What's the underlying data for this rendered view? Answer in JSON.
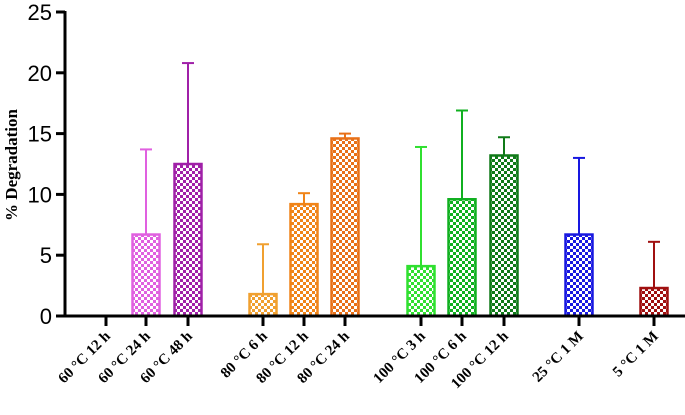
{
  "chart_data": {
    "type": "bar",
    "ylabel": "% Degradation",
    "ylim": [
      0,
      25
    ],
    "yticks": [
      0,
      5,
      10,
      15,
      20,
      25
    ],
    "grid": false,
    "bars": [
      {
        "label": "60 °C 12 h",
        "value": 0,
        "error": 0,
        "color": "#ff00ff"
      },
      {
        "label": "60 °C 24 h",
        "value": 6.7,
        "error": 7.0,
        "color": "#e060e0"
      },
      {
        "label": "60 °C 48 h",
        "value": 12.5,
        "error": 8.3,
        "color": "#a020a8"
      },
      {
        "label": "80 °C 6 h",
        "value": 1.8,
        "error": 4.1,
        "color": "#f0a030"
      },
      {
        "label": "80 °C 12 h",
        "value": 9.2,
        "error": 0.9,
        "color": "#f08418"
      },
      {
        "label": "80 °C 24 h",
        "value": 14.6,
        "error": 0.4,
        "color": "#e87018"
      },
      {
        "label": "100 °C 3 h",
        "value": 4.1,
        "error": 9.8,
        "color": "#30e030"
      },
      {
        "label": "100 °C 6 h",
        "value": 9.6,
        "error": 7.3,
        "color": "#10b020"
      },
      {
        "label": "100 °C 12 h",
        "value": 13.2,
        "error": 1.5,
        "color": "#107a18"
      },
      {
        "label": "25 °C 1 M",
        "value": 6.7,
        "error": 6.3,
        "color": "#1818e0"
      },
      {
        "label": "5 °C 1 M",
        "value": 2.3,
        "error": 3.8,
        "color": "#a01010"
      }
    ]
  }
}
